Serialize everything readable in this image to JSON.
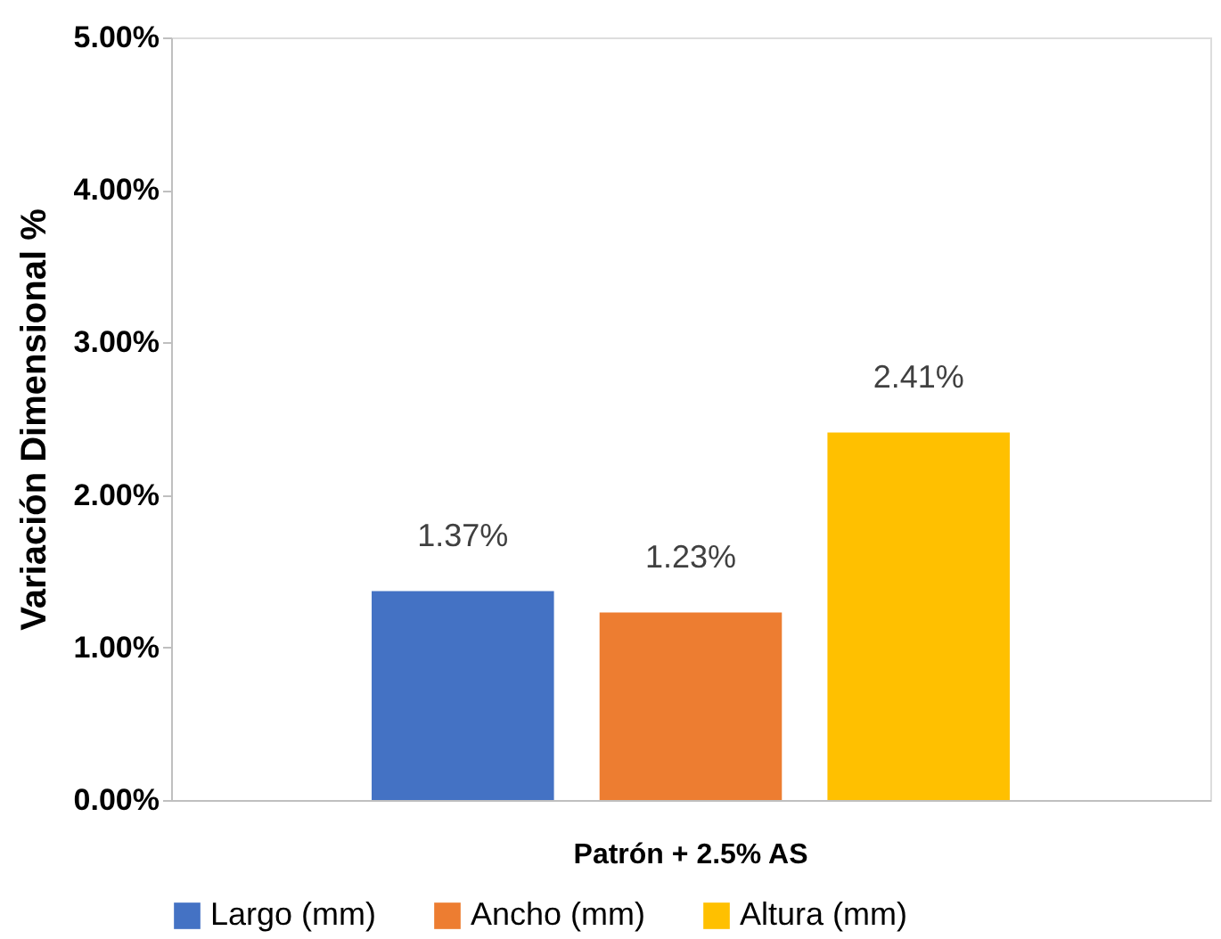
{
  "chart_data": {
    "type": "bar",
    "ylabel": "Variación Dimensional %",
    "categories": [
      "Patrón + 2.5% AS"
    ],
    "series": [
      {
        "name": "Largo (mm)",
        "color": "#4472c4",
        "values": [
          1.37
        ],
        "value_labels": [
          "1.37%"
        ]
      },
      {
        "name": "Ancho (mm)",
        "color": "#ed7d31",
        "values": [
          1.23
        ],
        "value_labels": [
          "1.23%"
        ]
      },
      {
        "name": "Altura (mm)",
        "color": "#ffc000",
        "values": [
          2.41
        ],
        "value_labels": [
          "2.41%"
        ]
      }
    ],
    "ylim": [
      0,
      5
    ],
    "yticks": [
      {
        "value": 0,
        "label": "0.00%"
      },
      {
        "value": 1,
        "label": "1.00%"
      },
      {
        "value": 2,
        "label": "2.00%"
      },
      {
        "value": 3,
        "label": "3.00%"
      },
      {
        "value": 4,
        "label": "4.00%"
      },
      {
        "value": 5,
        "label": "5.00%"
      }
    ],
    "grid": false,
    "legend": "bottom"
  }
}
